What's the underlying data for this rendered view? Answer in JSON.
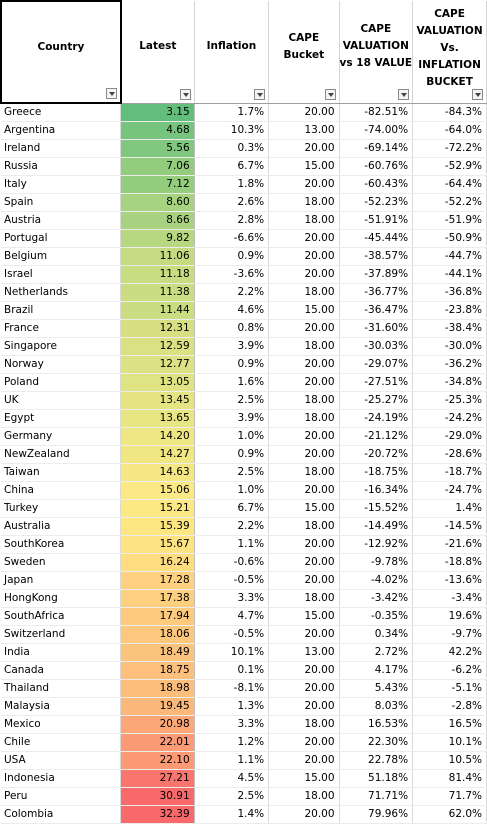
{
  "headers": {
    "country": "Country",
    "latest": "Latest",
    "inflation": "Inflation",
    "cape_bucket": [
      "CAPE",
      "Bucket"
    ],
    "cape_val_18": [
      "CAPE",
      "VALUATION",
      "vs 18 VALUE"
    ],
    "cape_val_infl": [
      "CAPE",
      "VALUATION",
      "Vs.",
      "INFLATION",
      "BUCKET"
    ]
  },
  "rows": [
    {
      "country": "Greece",
      "latest": "3.15",
      "inflation": "1.7%",
      "bucket": "20.00",
      "val18": "-82.51%",
      "valinf": "-84.3%",
      "color": "#63be7b"
    },
    {
      "country": "Argentina",
      "latest": "4.68",
      "inflation": "10.3%",
      "bucket": "13.00",
      "val18": "-74.00%",
      "valinf": "-64.0%",
      "color": "#76c47d"
    },
    {
      "country": "Ireland",
      "latest": "5.56",
      "inflation": "0.3%",
      "bucket": "20.00",
      "val18": "-69.14%",
      "valinf": "-72.2%",
      "color": "#81c77d"
    },
    {
      "country": "Russia",
      "latest": "7.06",
      "inflation": "6.7%",
      "bucket": "15.00",
      "val18": "-60.76%",
      "valinf": "-52.9%",
      "color": "#94cc7e"
    },
    {
      "country": "Italy",
      "latest": "7.12",
      "inflation": "1.8%",
      "bucket": "20.00",
      "val18": "-60.43%",
      "valinf": "-64.4%",
      "color": "#95cd7e"
    },
    {
      "country": "Spain",
      "latest": "8.60",
      "inflation": "2.6%",
      "bucket": "18.00",
      "val18": "-52.23%",
      "valinf": "-52.2%",
      "color": "#a7d27f"
    },
    {
      "country": "Austria",
      "latest": "8.66",
      "inflation": "2.8%",
      "bucket": "18.00",
      "val18": "-51.91%",
      "valinf": "-51.9%",
      "color": "#a8d27f"
    },
    {
      "country": "Portugal",
      "latest": "9.82",
      "inflation": "-6.6%",
      "bucket": "20.00",
      "val18": "-45.44%",
      "valinf": "-50.9%",
      "color": "#b7d780"
    },
    {
      "country": "Belgium",
      "latest": "11.06",
      "inflation": "0.9%",
      "bucket": "20.00",
      "val18": "-38.57%",
      "valinf": "-44.7%",
      "color": "#c6db81"
    },
    {
      "country": "Israel",
      "latest": "11.18",
      "inflation": "-3.6%",
      "bucket": "20.00",
      "val18": "-37.89%",
      "valinf": "-44.1%",
      "color": "#c8dc81"
    },
    {
      "country": "Netherlands",
      "latest": "11.38",
      "inflation": "2.2%",
      "bucket": "18.00",
      "val18": "-36.77%",
      "valinf": "-36.8%",
      "color": "#cadd82"
    },
    {
      "country": "Brazil",
      "latest": "11.44",
      "inflation": "4.6%",
      "bucket": "15.00",
      "val18": "-36.47%",
      "valinf": "-23.8%",
      "color": "#cbdd82"
    },
    {
      "country": "France",
      "latest": "12.31",
      "inflation": "0.8%",
      "bucket": "20.00",
      "val18": "-31.60%",
      "valinf": "-38.4%",
      "color": "#d6e082"
    },
    {
      "country": "Singapore",
      "latest": "12.59",
      "inflation": "3.9%",
      "bucket": "18.00",
      "val18": "-30.03%",
      "valinf": "-30.0%",
      "color": "#d9e182"
    },
    {
      "country": "Norway",
      "latest": "12.77",
      "inflation": "0.9%",
      "bucket": "20.00",
      "val18": "-29.07%",
      "valinf": "-36.2%",
      "color": "#dce283"
    },
    {
      "country": "Poland",
      "latest": "13.05",
      "inflation": "1.6%",
      "bucket": "20.00",
      "val18": "-27.51%",
      "valinf": "-34.8%",
      "color": "#e0e383"
    },
    {
      "country": "UK",
      "latest": "13.45",
      "inflation": "2.5%",
      "bucket": "18.00",
      "val18": "-25.27%",
      "valinf": "-25.3%",
      "color": "#e5e483"
    },
    {
      "country": "Egypt",
      "latest": "13.65",
      "inflation": "3.9%",
      "bucket": "18.00",
      "val18": "-24.19%",
      "valinf": "-24.2%",
      "color": "#e8e583"
    },
    {
      "country": "Germany",
      "latest": "14.20",
      "inflation": "1.0%",
      "bucket": "20.00",
      "val18": "-21.12%",
      "valinf": "-29.0%",
      "color": "#efe784"
    },
    {
      "country": "NewZealand",
      "latest": "14.27",
      "inflation": "0.9%",
      "bucket": "20.00",
      "val18": "-20.72%",
      "valinf": "-28.6%",
      "color": "#f0e784"
    },
    {
      "country": "Taiwan",
      "latest": "14.63",
      "inflation": "2.5%",
      "bucket": "18.00",
      "val18": "-18.75%",
      "valinf": "-18.7%",
      "color": "#f5e884"
    },
    {
      "country": "China",
      "latest": "15.06",
      "inflation": "1.0%",
      "bucket": "20.00",
      "val18": "-16.34%",
      "valinf": "-24.7%",
      "color": "#fae984"
    },
    {
      "country": "Turkey",
      "latest": "15.21",
      "inflation": "6.7%",
      "bucket": "15.00",
      "val18": "-15.52%",
      "valinf": "1.4%",
      "color": "#fce984"
    },
    {
      "country": "Australia",
      "latest": "15.39",
      "inflation": "2.2%",
      "bucket": "18.00",
      "val18": "-14.49%",
      "valinf": "-14.5%",
      "color": "#fee683"
    },
    {
      "country": "SouthKorea",
      "latest": "15.67",
      "inflation": "1.1%",
      "bucket": "20.00",
      "val18": "-12.92%",
      "valinf": "-21.6%",
      "color": "#fee382"
    },
    {
      "country": "Sweden",
      "latest": "16.24",
      "inflation": "-0.6%",
      "bucket": "20.00",
      "val18": "-9.78%",
      "valinf": "-18.8%",
      "color": "#fedd81"
    },
    {
      "country": "Japan",
      "latest": "17.28",
      "inflation": "-0.5%",
      "bucket": "20.00",
      "val18": "-4.02%",
      "valinf": "-13.6%",
      "color": "#fdd17f"
    },
    {
      "country": "HongKong",
      "latest": "17.38",
      "inflation": "3.3%",
      "bucket": "18.00",
      "val18": "-3.42%",
      "valinf": "-3.4%",
      "color": "#fdd07f"
    },
    {
      "country": "SouthAfrica",
      "latest": "17.94",
      "inflation": "4.7%",
      "bucket": "15.00",
      "val18": "-0.35%",
      "valinf": "19.6%",
      "color": "#fdca7e"
    },
    {
      "country": "Switzerland",
      "latest": "18.06",
      "inflation": "-0.5%",
      "bucket": "20.00",
      "val18": "0.34%",
      "valinf": "-9.7%",
      "color": "#fdc87d"
    },
    {
      "country": "India",
      "latest": "18.49",
      "inflation": "10.1%",
      "bucket": "13.00",
      "val18": "2.72%",
      "valinf": "42.2%",
      "color": "#fcc37c"
    },
    {
      "country": "Canada",
      "latest": "18.75",
      "inflation": "0.1%",
      "bucket": "20.00",
      "val18": "4.17%",
      "valinf": "-6.2%",
      "color": "#fcc07c"
    },
    {
      "country": "Thailand",
      "latest": "18.98",
      "inflation": "-8.1%",
      "bucket": "20.00",
      "val18": "5.43%",
      "valinf": "-5.1%",
      "color": "#fcbe7b"
    },
    {
      "country": "Malaysia",
      "latest": "19.45",
      "inflation": "1.3%",
      "bucket": "20.00",
      "val18": "8.03%",
      "valinf": "-2.8%",
      "color": "#fcb87a"
    },
    {
      "country": "Mexico",
      "latest": "20.98",
      "inflation": "3.3%",
      "bucket": "18.00",
      "val18": "16.53%",
      "valinf": "16.5%",
      "color": "#fba777"
    },
    {
      "country": "Chile",
      "latest": "22.01",
      "inflation": "1.2%",
      "bucket": "20.00",
      "val18": "22.30%",
      "valinf": "10.1%",
      "color": "#fb9b75"
    },
    {
      "country": "USA",
      "latest": "22.10",
      "inflation": "1.1%",
      "bucket": "20.00",
      "val18": "22.78%",
      "valinf": "10.5%",
      "color": "#fb9a75"
    },
    {
      "country": "Indonesia",
      "latest": "27.21",
      "inflation": "4.5%",
      "bucket": "15.00",
      "val18": "51.18%",
      "valinf": "81.4%",
      "color": "#f9766e"
    },
    {
      "country": "Peru",
      "latest": "30.91",
      "inflation": "2.5%",
      "bucket": "18.00",
      "val18": "71.71%",
      "valinf": "71.7%",
      "color": "#f8696b"
    },
    {
      "country": "Colombia",
      "latest": "32.39",
      "inflation": "1.4%",
      "bucket": "20.00",
      "val18": "79.96%",
      "valinf": "62.0%",
      "color": "#f8696b"
    }
  ]
}
